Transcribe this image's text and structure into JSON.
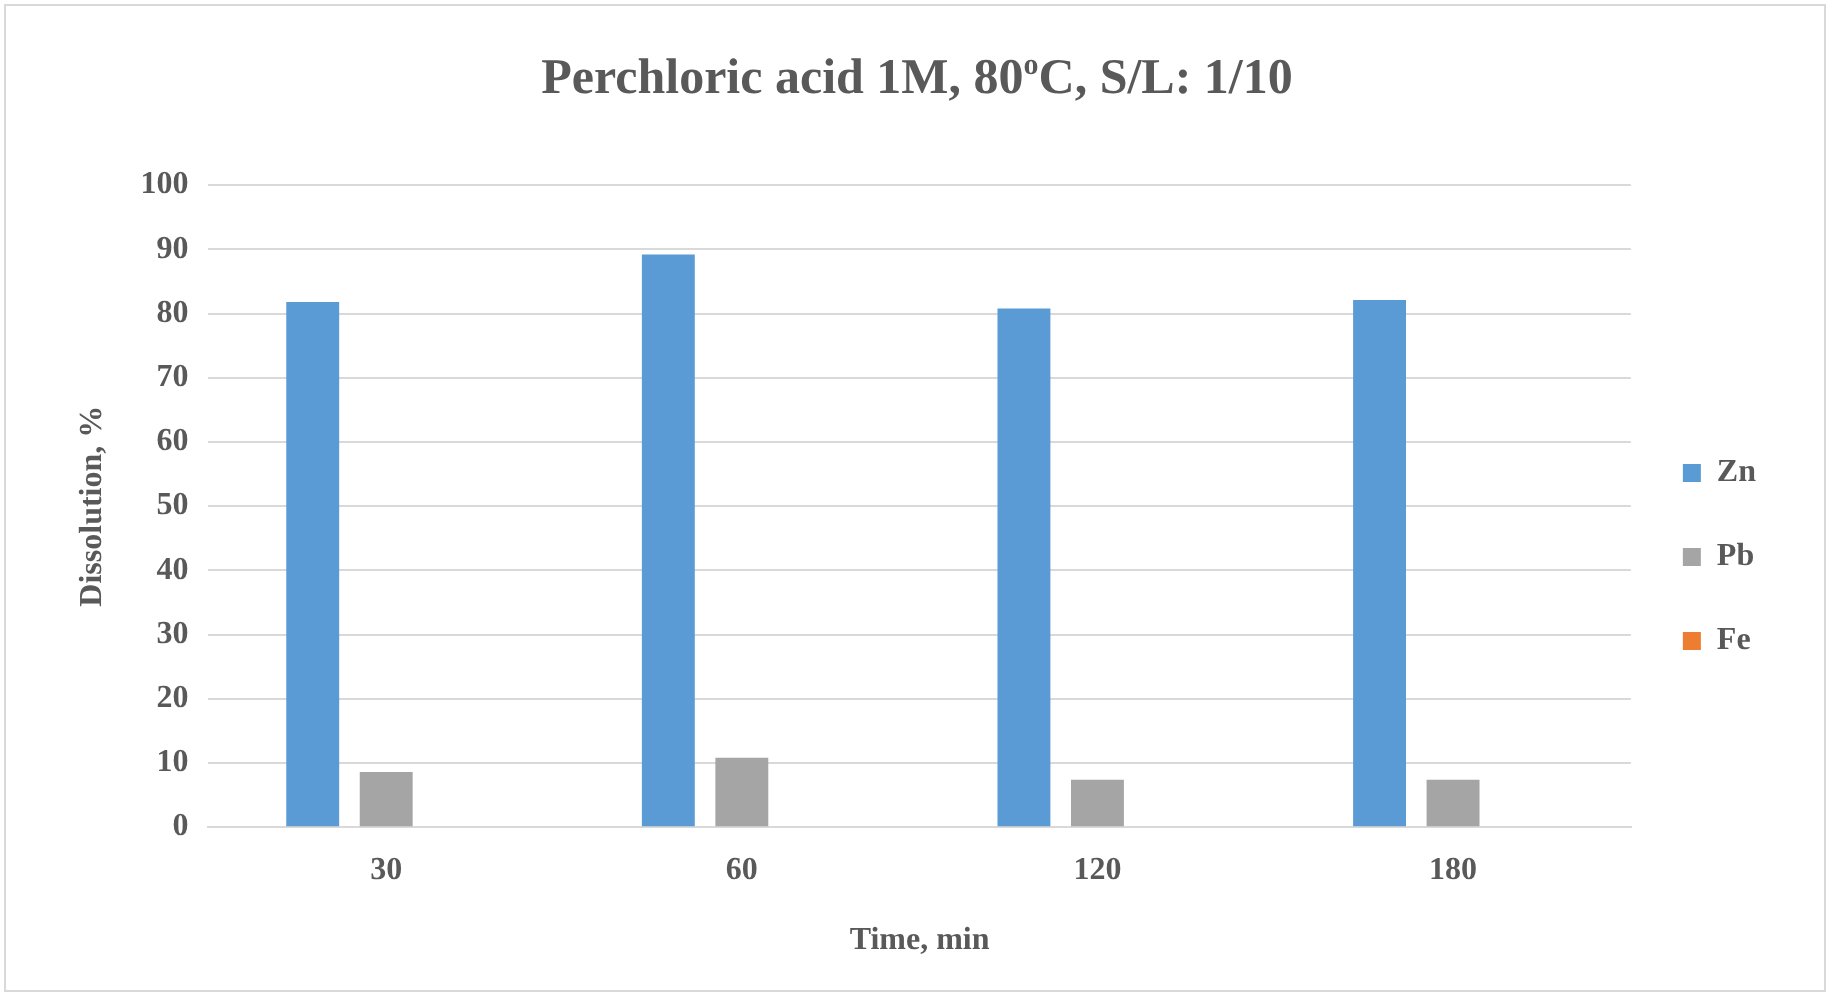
{
  "chart_data": {
    "type": "bar",
    "title": "Perchloric acid 1M, 80$^{o}$C, S/L: 1/10",
    "xlabel": "Time, min",
    "ylabel": "Dissolution, %",
    "categories": [
      "30",
      "60",
      "120",
      "180"
    ],
    "series": [
      {
        "name": "Zn",
        "color": "#5b9bd5",
        "values": [
          81.8,
          89.2,
          80.8,
          82.1
        ]
      },
      {
        "name": "Pb",
        "color": "#a5a5a5",
        "values": [
          8.6,
          10.8,
          7.4,
          7.4
        ]
      },
      {
        "name": "Fe",
        "color": "#ed7d31",
        "values": [
          0,
          0,
          0,
          0
        ]
      }
    ],
    "ylim": [
      0,
      100
    ],
    "yticks": [
      0,
      10,
      20,
      30,
      40,
      50,
      60,
      70,
      80,
      90,
      100
    ],
    "grid": "y",
    "legend": "right"
  }
}
